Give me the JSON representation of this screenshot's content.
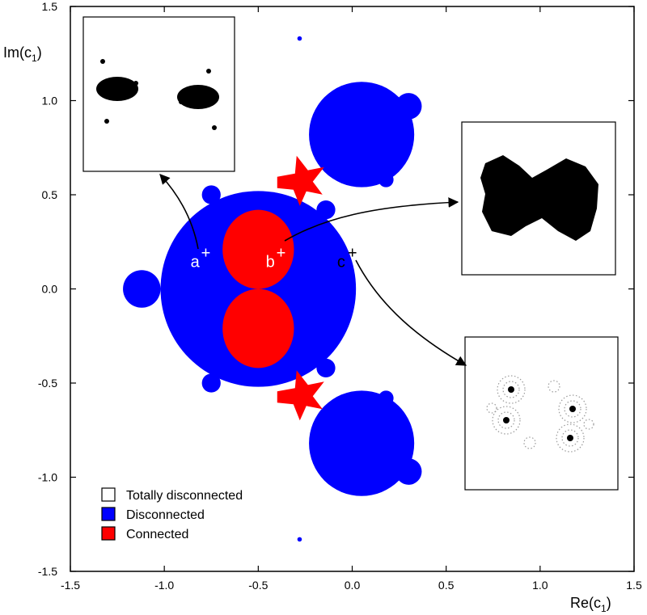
{
  "chart_data": {
    "type": "scatter",
    "title": "",
    "xlabel": "Re(c",
    "xlabel_sub": "1",
    "xlabel_close": ")",
    "ylabel": "Im(c",
    "ylabel_sub": "1",
    "ylabel_close": ")",
    "xlim": [
      -1.5,
      1.5
    ],
    "ylim": [
      -1.5,
      1.5
    ],
    "grid": false,
    "x_ticks": [
      {
        "value": -1.5,
        "label": "-1.5"
      },
      {
        "value": -1.0,
        "label": "-1.0"
      },
      {
        "value": -0.5,
        "label": "-0.5"
      },
      {
        "value": 0.0,
        "label": "0.0"
      },
      {
        "value": 0.5,
        "label": "0.5"
      },
      {
        "value": 1.0,
        "label": "1.0"
      },
      {
        "value": 1.5,
        "label": "1.5"
      }
    ],
    "y_ticks": [
      {
        "value": 1.5,
        "label": "1.5"
      },
      {
        "value": 1.0,
        "label": "1.0"
      },
      {
        "value": 0.5,
        "label": "0.5"
      },
      {
        "value": 0.0,
        "label": "0.0"
      },
      {
        "value": -0.5,
        "label": "-0.5"
      },
      {
        "value": -1.0,
        "label": "-1.0"
      },
      {
        "value": -1.5,
        "label": "-1.5"
      }
    ],
    "legend": {
      "placement": "bottom-left",
      "entries": [
        {
          "label": "Totally disconnected",
          "color": "#ffffff"
        },
        {
          "label": "Disconnected",
          "color": "#0000ff"
        },
        {
          "label": "Connected",
          "color": "#ff0000"
        }
      ]
    },
    "colors": {
      "disconnected": "#0000ff",
      "connected": "#ff0000",
      "totally_disconnected": "#ffffff"
    },
    "marked_points": [
      {
        "label": "a",
        "x": -0.8,
        "y": 0.18,
        "label_color": "#ffffff",
        "inset": "top-left"
      },
      {
        "label": "b",
        "x": -0.4,
        "y": 0.18,
        "label_color": "#ffffff",
        "inset": "middle-right"
      },
      {
        "label": "c",
        "x": -0.02,
        "y": 0.18,
        "label_color": "#000000",
        "inset": "bottom-right"
      }
    ],
    "regions": {
      "disconnected_main": {
        "cx": -0.5,
        "cy": 0.0,
        "r": 0.52
      },
      "disconnected_upper_bulb": {
        "cx": 0.05,
        "cy": 0.82,
        "r": 0.28
      },
      "disconnected_lower_bulb": {
        "cx": 0.05,
        "cy": -0.82,
        "r": 0.28
      },
      "disconnected_left_bulb": {
        "cx": -1.12,
        "cy": 0.0,
        "r": 0.1
      },
      "disconnected_small_bulbs": [
        {
          "cx": 0.3,
          "cy": 0.97,
          "r": 0.07
        },
        {
          "cx": 0.3,
          "cy": -0.97,
          "r": 0.07
        },
        {
          "cx": 0.18,
          "cy": 0.58,
          "r": 0.04
        },
        {
          "cx": 0.18,
          "cy": -0.58,
          "r": 0.04
        },
        {
          "cx": -0.75,
          "cy": 0.5,
          "r": 0.05
        },
        {
          "cx": -0.75,
          "cy": -0.5,
          "r": 0.05
        },
        {
          "cx": -0.14,
          "cy": 0.42,
          "r": 0.05
        },
        {
          "cx": -0.14,
          "cy": -0.42,
          "r": 0.05
        },
        {
          "cx": -0.78,
          "cy": 0.28,
          "r": 0.04
        },
        {
          "cx": -0.78,
          "cy": -0.28,
          "r": 0.04
        }
      ],
      "connected_upper_lobe": {
        "cx": -0.5,
        "cy": 0.21,
        "rx": 0.19,
        "ry": 0.21
      },
      "connected_lower_lobe": {
        "cx": -0.5,
        "cy": -0.21,
        "rx": 0.19,
        "ry": 0.21
      },
      "connected_upper_crosses": [
        {
          "cx": -0.27,
          "cy": 0.57
        }
      ],
      "connected_lower_crosses": [
        {
          "cx": -0.27,
          "cy": -0.57
        }
      ],
      "isolated_points": [
        {
          "cx": -0.28,
          "cy": 1.33,
          "r": 0.012
        },
        {
          "cx": -0.28,
          "cy": -1.33,
          "r": 0.012
        }
      ]
    }
  }
}
